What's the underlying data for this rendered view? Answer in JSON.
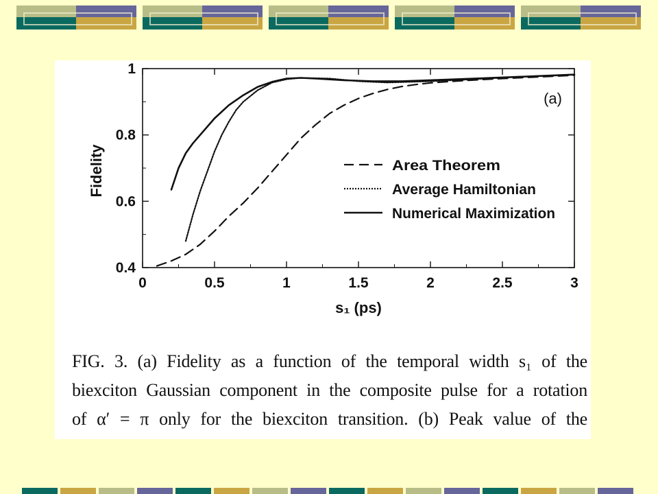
{
  "slide": {
    "background": "#ffffcc",
    "decor_colors": {
      "teal": "#0b6a5f",
      "navy": "#66669a",
      "olive": "#b8bd88",
      "gold": "#c9a643"
    }
  },
  "figure": {
    "caption_lines": [
      "FIG. 3. (a) Fidelity as a function of the temporal width s₁ of the",
      "biexciton Gaussian component in the composite pulse for a rotation",
      "of α′ = π only for the biexciton transition. (b) Peak value of the"
    ]
  },
  "chart_data": {
    "type": "line",
    "panel_label": "(a)",
    "xlabel": "s₁ (ps)",
    "ylabel": "Fidelity",
    "xlim": [
      0,
      3
    ],
    "ylim": [
      0.4,
      1.0
    ],
    "x_ticks": [
      0,
      0.5,
      1,
      1.5,
      2,
      2.5,
      3
    ],
    "x_tick_labels": [
      "0",
      "0.5",
      "1",
      "1.5",
      "2",
      "2.5",
      "3"
    ],
    "y_ticks": [
      0.4,
      0.6,
      0.8,
      1.0
    ],
    "y_tick_labels": [
      "0.4",
      "0.6",
      "0.8",
      "1"
    ],
    "grid": false,
    "legend_position": "center-right",
    "series": [
      {
        "name": "Area Theorem",
        "style": "dashed",
        "x": [
          0.1,
          0.2,
          0.3,
          0.4,
          0.5,
          0.6,
          0.7,
          0.8,
          0.9,
          1.0,
          1.1,
          1.2,
          1.3,
          1.4,
          1.5,
          1.6,
          1.7,
          1.8,
          1.9,
          2.0,
          2.2,
          2.4,
          2.6,
          2.8,
          3.0
        ],
        "y": [
          0.405,
          0.42,
          0.44,
          0.47,
          0.51,
          0.555,
          0.595,
          0.64,
          0.69,
          0.74,
          0.79,
          0.83,
          0.865,
          0.89,
          0.91,
          0.925,
          0.937,
          0.946,
          0.952,
          0.957,
          0.963,
          0.968,
          0.972,
          0.976,
          0.98
        ]
      },
      {
        "name": "Average Hamiltonian",
        "style": "dotted",
        "x": [
          0.3,
          0.35,
          0.4,
          0.45,
          0.5,
          0.55,
          0.6,
          0.65,
          0.7,
          0.8,
          0.9,
          1.0,
          1.1,
          1.3,
          1.5,
          1.7,
          2.0,
          2.3,
          2.6,
          3.0
        ],
        "y": [
          0.48,
          0.56,
          0.63,
          0.69,
          0.75,
          0.8,
          0.84,
          0.875,
          0.9,
          0.935,
          0.958,
          0.968,
          0.972,
          0.97,
          0.962,
          0.958,
          0.962,
          0.968,
          0.975,
          0.982
        ]
      },
      {
        "name": "Numerical Maximization",
        "style": "solid",
        "x": [
          0.2,
          0.25,
          0.3,
          0.35,
          0.4,
          0.5,
          0.6,
          0.7,
          0.8,
          0.9,
          1.0,
          1.1,
          1.2,
          1.4,
          1.6,
          1.8,
          2.0,
          2.3,
          2.6,
          3.0
        ],
        "y": [
          0.635,
          0.7,
          0.745,
          0.775,
          0.8,
          0.85,
          0.89,
          0.92,
          0.945,
          0.96,
          0.97,
          0.972,
          0.97,
          0.965,
          0.962,
          0.962,
          0.965,
          0.97,
          0.975,
          0.982
        ]
      }
    ]
  }
}
